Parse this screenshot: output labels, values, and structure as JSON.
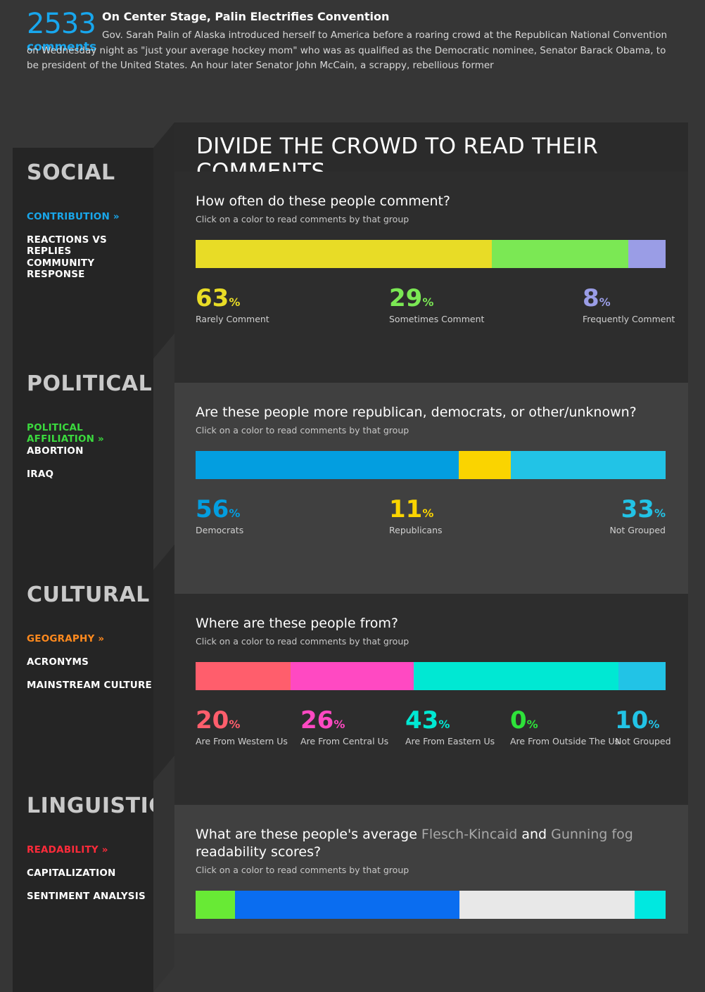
{
  "article": {
    "count": "2533",
    "count_label": "comments",
    "title": "On Center Stage, Palin Electrifies Convention",
    "body": "Gov. Sarah Palin of Alaska introduced herself to America before a roaring crowd at the Republican National Convention on Wednesday night as \"just your average hockey mom\" who was as qualified as the Democratic nominee, Senator Barack Obama, to be president of the United States. An hour later Senator John McCain, a scrappy, rebellious former"
  },
  "main_title": "DIVIDE THE CROWD TO READ THEIR COMMENTS",
  "hint": "Click on a color to read comments by that group",
  "sections": [
    {
      "title": "SOCIAL",
      "accent": "#19a6ea",
      "items": [
        "CONTRIBUTION »",
        "REACTIONS VS REPLIES",
        "COMMUNITY RESPONSE"
      ],
      "question": "How often do these people comment?",
      "bar": [
        {
          "label": "Rarely Comment",
          "value": 63,
          "color": "#e8dc26"
        },
        {
          "label": "Sometimes Comment",
          "value": 29,
          "color": "#7be854"
        },
        {
          "label": "Frequently Comment",
          "value": 8,
          "color": "#9a9de6"
        }
      ]
    },
    {
      "title": "POLITICAL",
      "accent": "#3bd93e",
      "items": [
        "POLITICAL AFFILIATION »",
        "ABORTION",
        "IRAQ"
      ],
      "question": "Are these people more republican, democrats, or other/unknown?",
      "bar": [
        {
          "label": "Democrats",
          "value": 56,
          "color": "#039ee0"
        },
        {
          "label": "Republicans",
          "value": 11,
          "color": "#fad400"
        },
        {
          "label": "Not Grouped",
          "value": 33,
          "color": "#22c3e6"
        }
      ]
    },
    {
      "title": "CULTURAL",
      "accent": "#ff8a1e",
      "items": [
        "GEOGRAPHY »",
        "ACRONYMS",
        "MAINSTREAM CULTURE"
      ],
      "question": "Where are these people from?",
      "bar": [
        {
          "label": "Are From Western Us",
          "value": 20,
          "color": "#ff5e6c"
        },
        {
          "label": "Are From Central Us",
          "value": 26,
          "color": "#ff49c2"
        },
        {
          "label": "Are From Eastern Us",
          "value": 43,
          "color": "#00e8d3"
        },
        {
          "label": "Are From Outside The Us",
          "value": 0,
          "color": "#2ee23a"
        },
        {
          "label": "Not Grouped",
          "value": 10,
          "color": "#22c3e6"
        }
      ]
    },
    {
      "title": "LINGUISTIC",
      "accent": "#ff2b3a",
      "items": [
        "READABILITY »",
        "CAPITALIZATION",
        "SENTIMENT ANALYSIS"
      ],
      "question_parts": [
        "What are these people's average ",
        "Flesch-Kincaid",
        " and ",
        "Gunning fog",
        " readability scores?"
      ],
      "bar": [
        {
          "value": 8.4,
          "color": "#68ea35"
        },
        {
          "value": 47.8,
          "color": "#0a6df0"
        },
        {
          "value": 37.2,
          "color": "#e8e8e8"
        },
        {
          "value": 6.6,
          "color": "#00e8e0"
        }
      ]
    }
  ]
}
